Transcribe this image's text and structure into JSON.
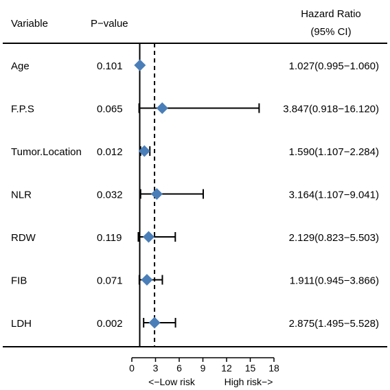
{
  "chart_data": {
    "type": "forest",
    "headers": {
      "variable": "Variable",
      "pvalue": "P−value",
      "hr_line1": "Hazard Ratio",
      "hr_line2": "(95% CI)"
    },
    "rows": [
      {
        "variable": "Age",
        "pvalue": "0.101",
        "hr": 1.027,
        "lower": 0.995,
        "upper": 1.06,
        "hr_text": "1.027(0.995−1.060)"
      },
      {
        "variable": "F.P.S",
        "pvalue": "0.065",
        "hr": 3.847,
        "lower": 0.918,
        "upper": 16.12,
        "hr_text": "3.847(0.918−16.120)"
      },
      {
        "variable": "Tumor.Location",
        "pvalue": "0.012",
        "hr": 1.59,
        "lower": 1.107,
        "upper": 2.284,
        "hr_text": "1.590(1.107−2.284)"
      },
      {
        "variable": "NLR",
        "pvalue": "0.032",
        "hr": 3.164,
        "lower": 1.107,
        "upper": 9.041,
        "hr_text": "3.164(1.107−9.041)"
      },
      {
        "variable": "RDW",
        "pvalue": "0.119",
        "hr": 2.129,
        "lower": 0.823,
        "upper": 5.503,
        "hr_text": "2.129(0.823−5.503)"
      },
      {
        "variable": "FIB",
        "pvalue": "0.071",
        "hr": 1.911,
        "lower": 0.945,
        "upper": 3.866,
        "hr_text": "1.911(0.945−3.866)"
      },
      {
        "variable": "LDH",
        "pvalue": "0.002",
        "hr": 2.875,
        "lower": 1.495,
        "upper": 5.528,
        "hr_text": "2.875(1.495−5.528)"
      }
    ],
    "x_ticks": [
      0,
      3,
      6,
      9,
      12,
      15,
      18
    ],
    "xlim": [
      0,
      18
    ],
    "reference_line": 1,
    "dashed_line": 2.875,
    "xlabel_left": "<−Low risk",
    "xlabel_right": "High risk−>",
    "marker_color": "#4a7eb8"
  }
}
